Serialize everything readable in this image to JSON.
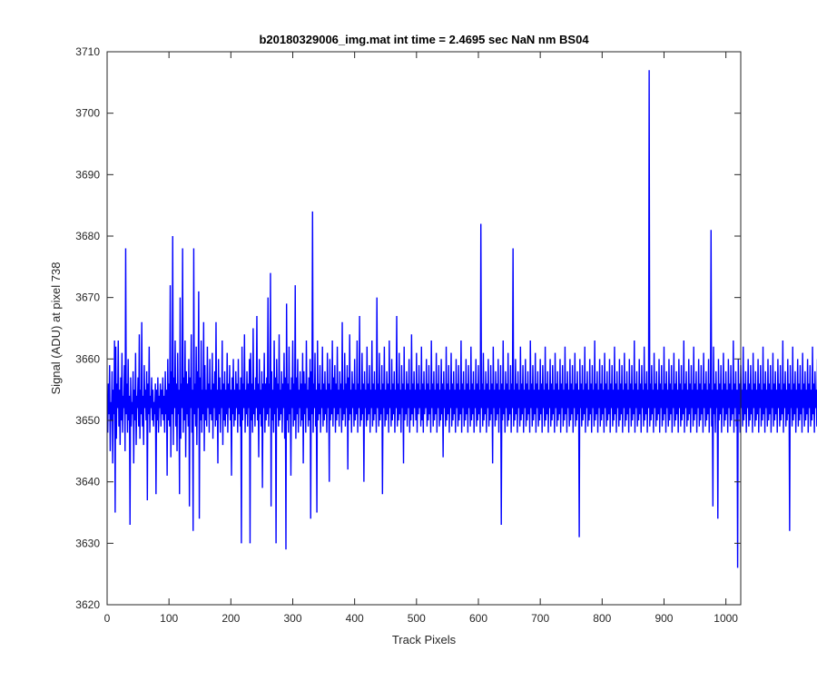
{
  "chart_data": {
    "type": "line",
    "title": "b20180329006_img.mat int time = 2.4695 sec  NaN nm BS04",
    "xlabel": "Track Pixels",
    "ylabel": "Signal (ADU) at pixel 738",
    "xlim": [
      0,
      1024
    ],
    "ylim": [
      3620,
      3710
    ],
    "xticks": [
      0,
      100,
      200,
      300,
      400,
      500,
      600,
      700,
      800,
      900,
      1000
    ],
    "yticks": [
      3620,
      3630,
      3640,
      3650,
      3660,
      3670,
      3680,
      3690,
      3700,
      3710
    ],
    "grid": false,
    "legend": "none",
    "series": [
      {
        "color": "#0000ff",
        "x_start": 1,
        "x_step": 1,
        "values": [
          3648,
          3656,
          3651,
          3659,
          3645,
          3653,
          3650,
          3658,
          3643,
          3655,
          3651,
          3663,
          3635,
          3662,
          3647,
          3656,
          3652,
          3663,
          3649,
          3655,
          3646,
          3657,
          3650,
          3661,
          3648,
          3654,
          3652,
          3659,
          3645,
          3678,
          3651,
          3656,
          3648,
          3660,
          3650,
          3654,
          3633,
          3657,
          3649,
          3653,
          3651,
          3658,
          3643,
          3655,
          3650,
          3661,
          3646,
          3654,
          3652,
          3657,
          3649,
          3664,
          3647,
          3655,
          3651,
          3666,
          3649,
          3654,
          3646,
          3659,
          3652,
          3655,
          3650,
          3658,
          3637,
          3656,
          3651,
          3662,
          3648,
          3654,
          3652,
          3657,
          3650,
          3655,
          3649,
          3653,
          3651,
          3656,
          3638,
          3655,
          3650,
          3657,
          3648,
          3654,
          3652,
          3656,
          3649,
          3655,
          3651,
          3657,
          3650,
          3654,
          3648,
          3658,
          3651,
          3655,
          3641,
          3660,
          3650,
          3656,
          3649,
          3672,
          3644,
          3658,
          3651,
          3680,
          3646,
          3657,
          3652,
          3663,
          3649,
          3656,
          3645,
          3661,
          3651,
          3655,
          3638,
          3670,
          3647,
          3656,
          3652,
          3678,
          3648,
          3657,
          3650,
          3663,
          3644,
          3658,
          3651,
          3656,
          3649,
          3660,
          3636,
          3657,
          3652,
          3664,
          3648,
          3655,
          3632,
          3678,
          3651,
          3656,
          3649,
          3662,
          3646,
          3658,
          3652,
          3671,
          3634,
          3657,
          3650,
          3663,
          3648,
          3655,
          3651,
          3666,
          3645,
          3659,
          3650,
          3655,
          3649,
          3662,
          3652,
          3656,
          3648,
          3660,
          3651,
          3655,
          3650,
          3661,
          3647,
          3656,
          3652,
          3658,
          3649,
          3666,
          3650,
          3655,
          3643,
          3660,
          3651,
          3657,
          3648,
          3655,
          3652,
          3663,
          3646,
          3656,
          3650,
          3658,
          3649,
          3655,
          3651,
          3661,
          3648,
          3656,
          3652,
          3659,
          3650,
          3655,
          3641,
          3657,
          3651,
          3660,
          3649,
          3655,
          3650,
          3658,
          3652,
          3656,
          3648,
          3660,
          3651,
          3655,
          3649,
          3657,
          3630,
          3662,
          3650,
          3656,
          3652,
          3664,
          3648,
          3655,
          3651,
          3658,
          3649,
          3656,
          3652,
          3660,
          3630,
          3661,
          3650,
          3656,
          3648,
          3665,
          3651,
          3655,
          3649,
          3657,
          3652,
          3667,
          3650,
          3656,
          3644,
          3660,
          3651,
          3655,
          3649,
          3658,
          3639,
          3656,
          3652,
          3661,
          3648,
          3656,
          3650,
          3657,
          3651,
          3670,
          3649,
          3656,
          3652,
          3674,
          3636,
          3658,
          3650,
          3655,
          3648,
          3663,
          3651,
          3657,
          3630,
          3660,
          3652,
          3656,
          3649,
          3664,
          3650,
          3655,
          3651,
          3658,
          3648,
          3656,
          3652,
          3661,
          3647,
          3657,
          3629,
          3669,
          3650,
          3656,
          3648,
          3662,
          3651,
          3655,
          3641,
          3657,
          3652,
          3663,
          3649,
          3656,
          3650,
          3672,
          3647,
          3657,
          3651,
          3660,
          3648,
          3655,
          3652,
          3658,
          3649,
          3656,
          3650,
          3661,
          3643,
          3658,
          3651,
          3656,
          3648,
          3663,
          3652,
          3655,
          3649,
          3657,
          3650,
          3660,
          3634,
          3658,
          3651,
          3684,
          3648,
          3656,
          3652,
          3661,
          3649,
          3655,
          3635,
          3663,
          3650,
          3656,
          3651,
          3659,
          3648,
          3655,
          3652,
          3662,
          3649,
          3656,
          3650,
          3658,
          3651,
          3655,
          3648,
          3661,
          3652,
          3656,
          3640,
          3660,
          3650,
          3655,
          3651,
          3663,
          3649,
          3657,
          3652,
          3659,
          3648,
          3656,
          3650,
          3662,
          3651,
          3655,
          3649,
          3658,
          3652,
          3656,
          3648,
          3666,
          3650,
          3655,
          3651,
          3661,
          3649,
          3656,
          3652,
          3659,
          3642,
          3657,
          3650,
          3664,
          3651,
          3655,
          3648,
          3658,
          3652,
          3656,
          3649,
          3660,
          3650,
          3655,
          3651,
          3663,
          3648,
          3656,
          3652,
          3667,
          3649,
          3655,
          3650,
          3661,
          3651,
          3656,
          3640,
          3658,
          3652,
          3655,
          3649,
          3662,
          3650,
          3656,
          3651,
          3659,
          3648,
          3655,
          3652,
          3663,
          3649,
          3656,
          3650,
          3658,
          3651,
          3655,
          3648,
          3670,
          3652,
          3656,
          3649,
          3661,
          3650,
          3655,
          3651,
          3659,
          3638,
          3656,
          3652,
          3662,
          3649,
          3655,
          3650,
          3658,
          3651,
          3656,
          3648,
          3663,
          3652,
          3655,
          3649,
          3660,
          3650,
          3656,
          3651,
          3658,
          3648,
          3655,
          3652,
          3667,
          3649,
          3656,
          3650,
          3661,
          3651,
          3655,
          3648,
          3659,
          3652,
          3656,
          3643,
          3662,
          3650,
          3655,
          3651,
          3658,
          3649,
          3656,
          3652,
          3660,
          3648,
          3655,
          3650,
          3664,
          3651,
          3656,
          3649,
          3658,
          3652,
          3655,
          3650,
          3661,
          3648,
          3656,
          3651,
          3659,
          3652,
          3655,
          3649,
          3662,
          3650,
          3656,
          3648,
          3658,
          3651,
          3655,
          3652,
          3660,
          3649,
          3656,
          3650,
          3659,
          3651,
          3655,
          3648,
          3663,
          3652,
          3656,
          3649,
          3658,
          3650,
          3655,
          3651,
          3661,
          3648,
          3656,
          3652,
          3659,
          3649,
          3655,
          3650,
          3660,
          3651,
          3656,
          3644,
          3658,
          3652,
          3655,
          3649,
          3662,
          3650,
          3656,
          3651,
          3659,
          3648,
          3655,
          3652,
          3661,
          3649,
          3656,
          3650,
          3658,
          3651,
          3655,
          3648,
          3660,
          3652,
          3656,
          3649,
          3659,
          3650,
          3655,
          3651,
          3663,
          3648,
          3656,
          3652,
          3658,
          3649,
          3655,
          3650,
          3660,
          3651,
          3656,
          3648,
          3659,
          3652,
          3655,
          3649,
          3662,
          3650,
          3656,
          3651,
          3658,
          3648,
          3655,
          3652,
          3660,
          3649,
          3656,
          3650,
          3659,
          3651,
          3655,
          3648,
          3682,
          3652,
          3656,
          3649,
          3661,
          3650,
          3655,
          3651,
          3658,
          3648,
          3656,
          3652,
          3660,
          3649,
          3655,
          3650,
          3659,
          3651,
          3656,
          3643,
          3662,
          3652,
          3655,
          3649,
          3658,
          3650,
          3656,
          3651,
          3660,
          3648,
          3655,
          3652,
          3659,
          3633,
          3656,
          3650,
          3663,
          3651,
          3655,
          3648,
          3658,
          3652,
          3656,
          3649,
          3661,
          3650,
          3655,
          3651,
          3659,
          3648,
          3656,
          3652,
          3678,
          3649,
          3655,
          3650,
          3660,
          3651,
          3656,
          3648,
          3658,
          3652,
          3655,
          3649,
          3662,
          3650,
          3656,
          3651,
          3659,
          3648,
          3655,
          3652,
          3660,
          3649,
          3656,
          3650,
          3658,
          3651,
          3655,
          3648,
          3663,
          3652,
          3656,
          3649,
          3659,
          3650,
          3655,
          3651,
          3661,
          3648,
          3656,
          3652,
          3658,
          3649,
          3655,
          3650,
          3660,
          3651,
          3656,
          3648,
          3659,
          3652,
          3655,
          3649,
          3662,
          3650,
          3656,
          3651,
          3658,
          3648,
          3655,
          3652,
          3660,
          3649,
          3656,
          3650,
          3659,
          3651,
          3655,
          3648,
          3661,
          3652,
          3656,
          3649,
          3658,
          3650,
          3655,
          3651,
          3660,
          3648,
          3656,
          3652,
          3659,
          3649,
          3655,
          3650,
          3662,
          3651,
          3656,
          3648,
          3658,
          3652,
          3655,
          3649,
          3660,
          3650,
          3656,
          3651,
          3659,
          3648,
          3655,
          3652,
          3661,
          3649,
          3656,
          3650,
          3658,
          3651,
          3655,
          3631,
          3660,
          3652,
          3656,
          3649,
          3659,
          3650,
          3655,
          3651,
          3662,
          3648,
          3656,
          3652,
          3658,
          3649,
          3655,
          3650,
          3660,
          3651,
          3656,
          3648,
          3659,
          3652,
          3655,
          3649,
          3663,
          3650,
          3656,
          3651,
          3658,
          3648,
          3655,
          3652,
          3660,
          3649,
          3656,
          3650,
          3659,
          3651,
          3655,
          3648,
          3661,
          3652,
          3656,
          3649,
          3658,
          3650,
          3655,
          3651,
          3660,
          3648,
          3656,
          3652,
          3659,
          3649,
          3655,
          3650,
          3662,
          3651,
          3656,
          3648,
          3658,
          3652,
          3655,
          3649,
          3660,
          3650,
          3656,
          3651,
          3659,
          3648,
          3655,
          3652,
          3661,
          3649,
          3656,
          3650,
          3658,
          3651,
          3655,
          3648,
          3660,
          3652,
          3656,
          3649,
          3659,
          3650,
          3655,
          3651,
          3663,
          3648,
          3656,
          3652,
          3658,
          3649,
          3655,
          3650,
          3660,
          3651,
          3656,
          3648,
          3659,
          3652,
          3655,
          3649,
          3662,
          3650,
          3656,
          3651,
          3658,
          3648,
          3655,
          3652,
          3707,
          3649,
          3656,
          3650,
          3659,
          3651,
          3655,
          3648,
          3661,
          3652,
          3656,
          3649,
          3658,
          3650,
          3655,
          3651,
          3660,
          3648,
          3656,
          3652,
          3659,
          3649,
          3655,
          3650,
          3662,
          3651,
          3656,
          3648,
          3658,
          3652,
          3655,
          3649,
          3660,
          3650,
          3656,
          3651,
          3659,
          3648,
          3655,
          3652,
          3661,
          3649,
          3656,
          3650,
          3658,
          3651,
          3655,
          3648,
          3660,
          3652,
          3656,
          3649,
          3659,
          3650,
          3655,
          3651,
          3663,
          3648,
          3656,
          3652,
          3658,
          3649,
          3655,
          3650,
          3660,
          3651,
          3656,
          3648,
          3659,
          3652,
          3655,
          3649,
          3662,
          3650,
          3656,
          3651,
          3658,
          3648,
          3655,
          3652,
          3660,
          3649,
          3656,
          3650,
          3659,
          3651,
          3655,
          3648,
          3661,
          3652,
          3656,
          3649,
          3658,
          3650,
          3655,
          3651,
          3660,
          3648,
          3656,
          3652,
          3681,
          3649,
          3655,
          3636,
          3662,
          3651,
          3656,
          3648,
          3658,
          3652,
          3655,
          3634,
          3660,
          3650,
          3656,
          3651,
          3659,
          3648,
          3655,
          3652,
          3661,
          3649,
          3656,
          3650,
          3658,
          3651,
          3655,
          3648,
          3660,
          3652,
          3656,
          3649,
          3659,
          3650,
          3655,
          3651,
          3663,
          3648,
          3656,
          3652,
          3658,
          3649,
          3655,
          3626,
          3660,
          3651,
          3656,
          3648,
          3659,
          3652,
          3655,
          3649,
          3662,
          3650,
          3656,
          3651,
          3658,
          3648,
          3655,
          3652,
          3660,
          3649,
          3656,
          3650,
          3659,
          3651,
          3655,
          3648,
          3661,
          3652,
          3656,
          3649,
          3658,
          3650,
          3655,
          3651,
          3660,
          3648,
          3656,
          3652,
          3659,
          3649,
          3655,
          3650,
          3662,
          3651,
          3656,
          3648,
          3658,
          3652,
          3655,
          3649,
          3660,
          3650,
          3656,
          3651,
          3659,
          3648,
          3655,
          3652,
          3661,
          3649,
          3656,
          3650,
          3658,
          3651,
          3655,
          3648,
          3660,
          3652,
          3656,
          3649,
          3659,
          3650,
          3655,
          3651,
          3663,
          3648,
          3656,
          3652,
          3658,
          3649,
          3655,
          3650,
          3660,
          3651,
          3656,
          3632,
          3659,
          3652,
          3655,
          3649,
          3662,
          3650,
          3656,
          3651,
          3658,
          3648,
          3655,
          3652,
          3660,
          3649,
          3656,
          3650,
          3659,
          3651,
          3655,
          3648,
          3661,
          3652,
          3656,
          3649,
          3658,
          3650,
          3655,
          3651,
          3660,
          3648,
          3656,
          3652,
          3659,
          3649,
          3655,
          3650,
          3662,
          3651,
          3656,
          3648,
          3658,
          3652,
          3655,
          3649,
          3660,
          3650,
          3656,
          3651,
          3659,
          3648,
          3655,
          3652,
          3661,
          3649,
          3656,
          3650,
          3658,
          3651,
          3655,
          3648,
          3660,
          3652,
          3656,
          3649,
          3659,
          3650,
          3655,
          3651
        ]
      }
    ]
  }
}
